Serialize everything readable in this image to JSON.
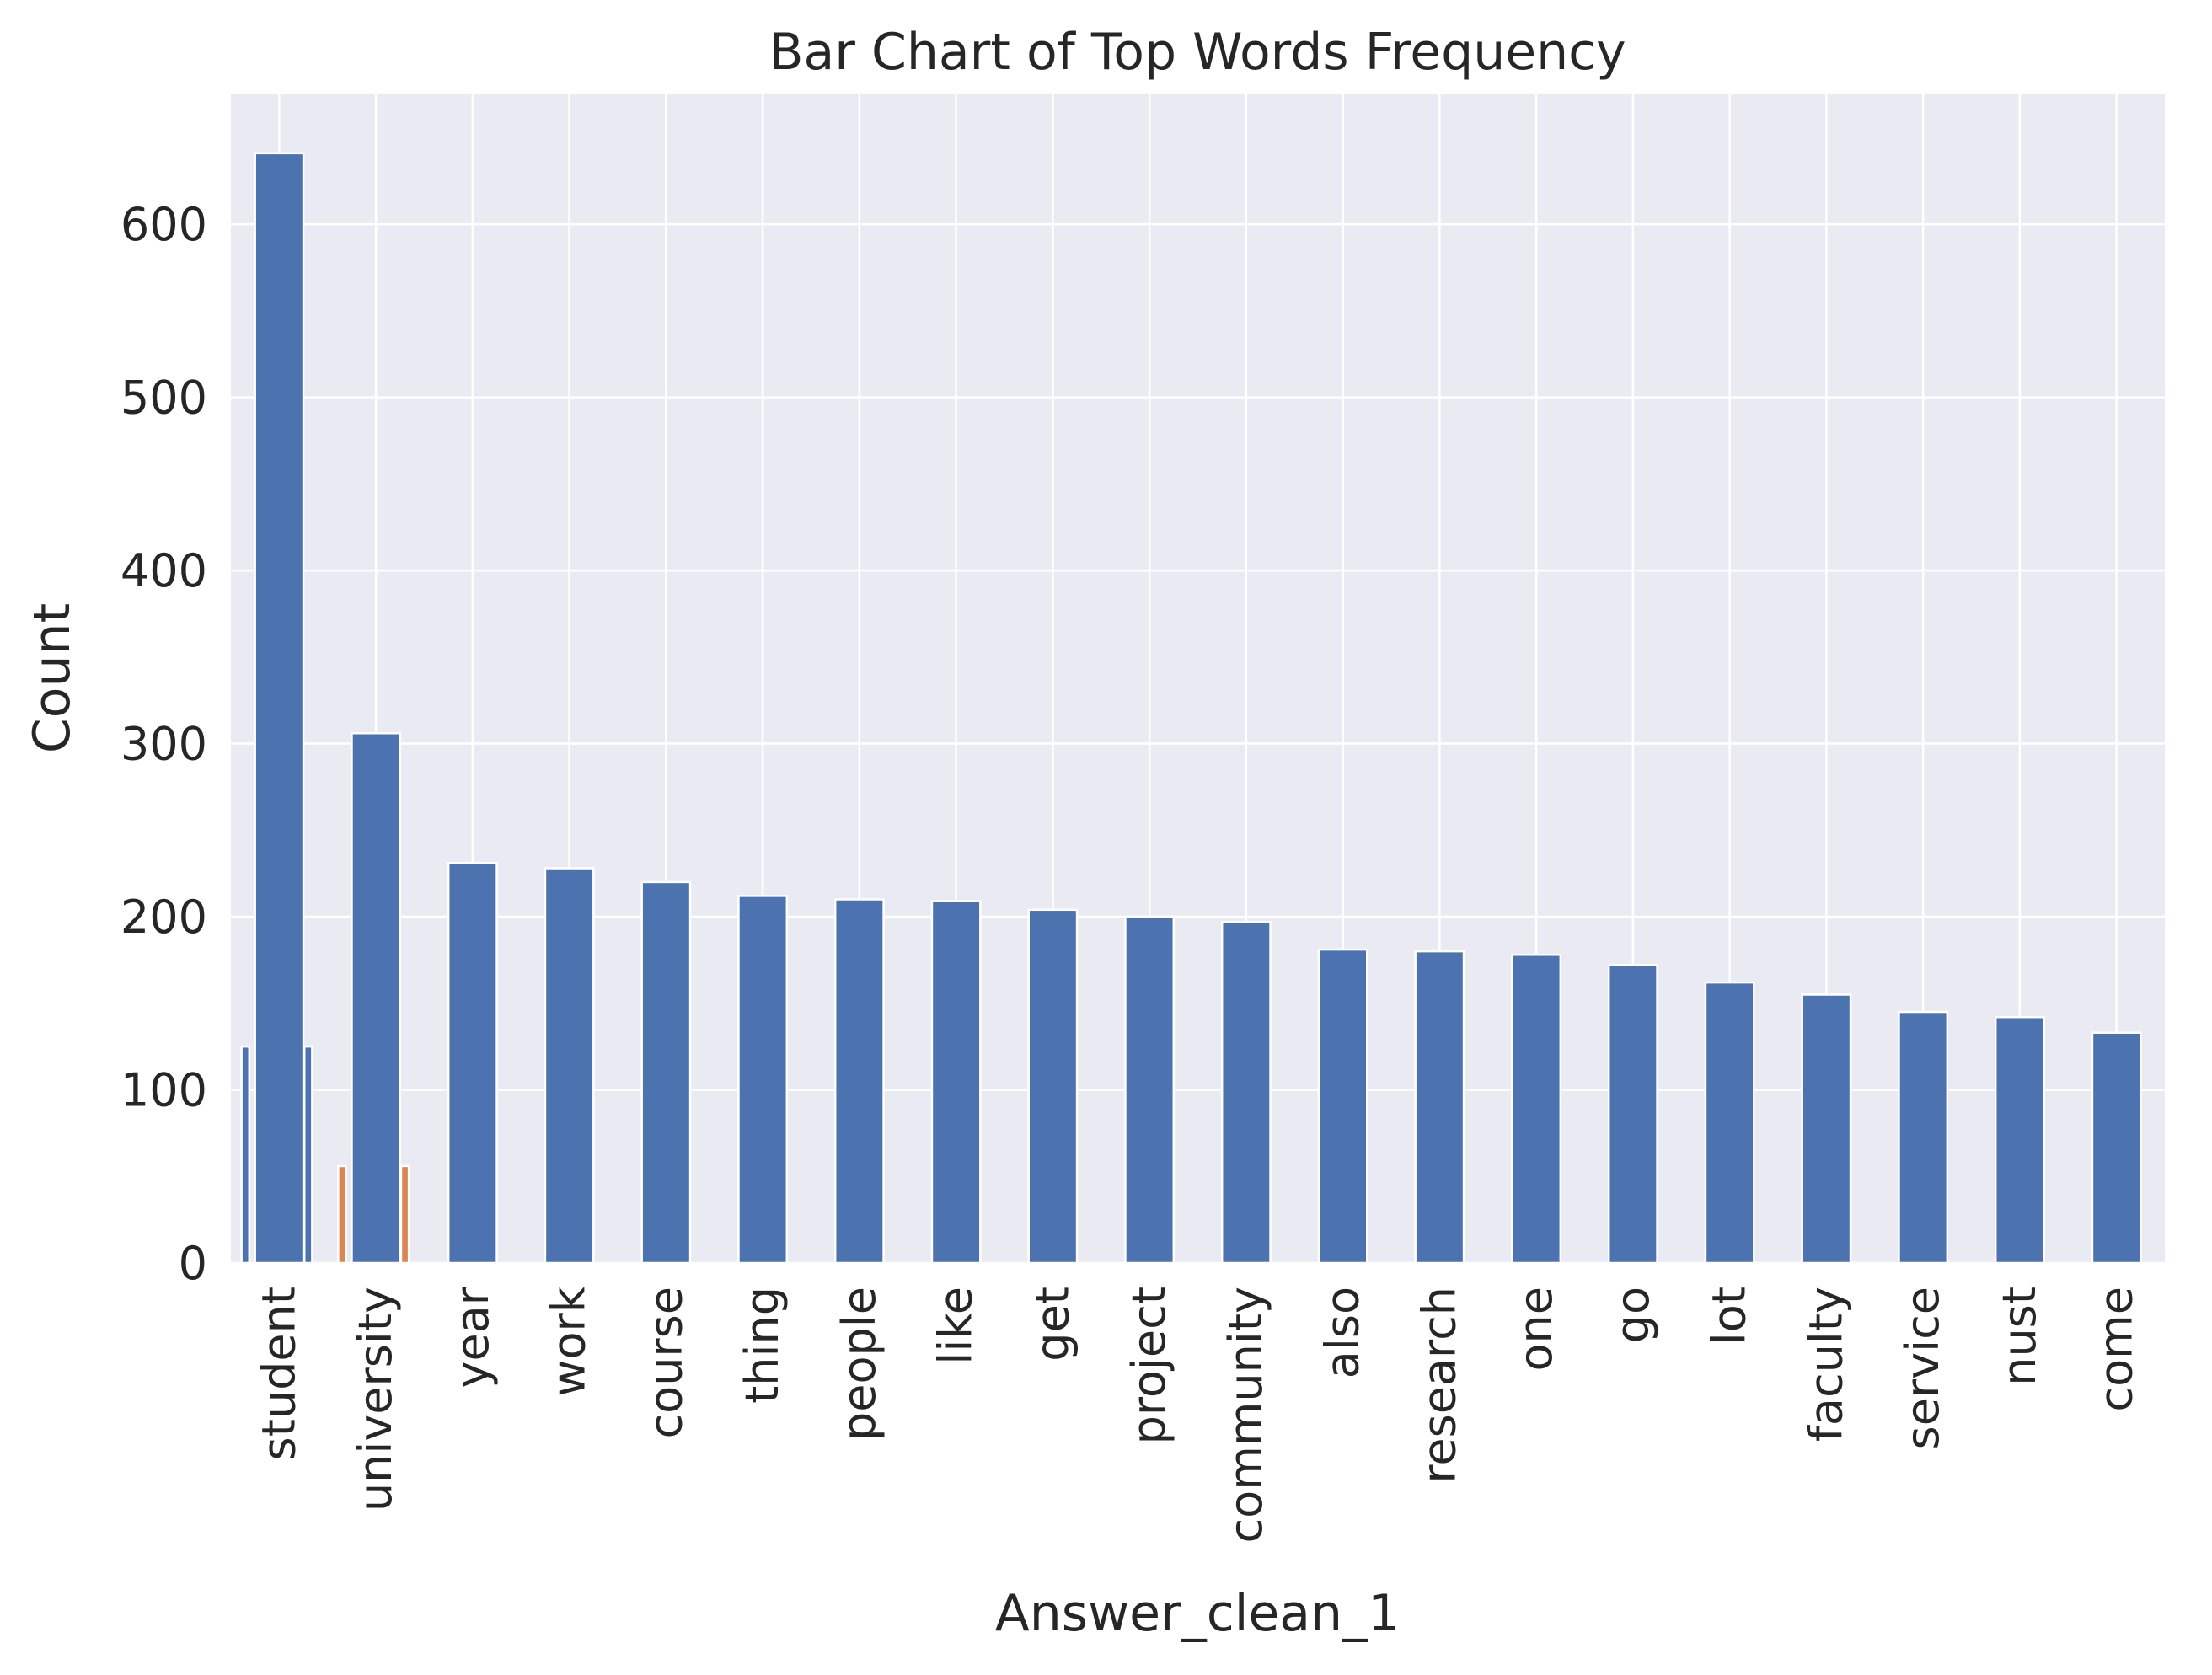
{
  "chart_data": {
    "type": "bar",
    "title": "Bar Chart of Top Words Frequency",
    "xlabel": "Answer_clean_1",
    "ylabel": "Count",
    "ylim": [
      0,
      675
    ],
    "yticks": [
      0,
      100,
      200,
      300,
      400,
      500,
      600
    ],
    "grid": true,
    "legend": "none",
    "colors": {
      "primary": "#4c72b0",
      "secondary": "#dd8452",
      "background": "#eaeaf2",
      "grid": "#ffffff"
    },
    "categories": [
      "student",
      "university",
      "year",
      "work",
      "course",
      "thing",
      "people",
      "like",
      "get",
      "project",
      "community",
      "also",
      "research",
      "one",
      "go",
      "lot",
      "faculty",
      "service",
      "nust",
      "come"
    ],
    "values": [
      641,
      306,
      231,
      228,
      220,
      212,
      210,
      209,
      204,
      200,
      197,
      181,
      180,
      178,
      172,
      162,
      155,
      145,
      142,
      133
    ],
    "overlay_bars": [
      {
        "x": -0.35,
        "width": 0.08,
        "value": 125,
        "color": "#4c72b0"
      },
      {
        "x": 0.3,
        "width": 0.08,
        "value": 125,
        "color": "#4c72b0"
      },
      {
        "x": 0.65,
        "width": 0.08,
        "value": 56,
        "color": "#dd8452"
      },
      {
        "x": 1.3,
        "width": 0.08,
        "value": 56,
        "color": "#dd8452"
      }
    ]
  }
}
